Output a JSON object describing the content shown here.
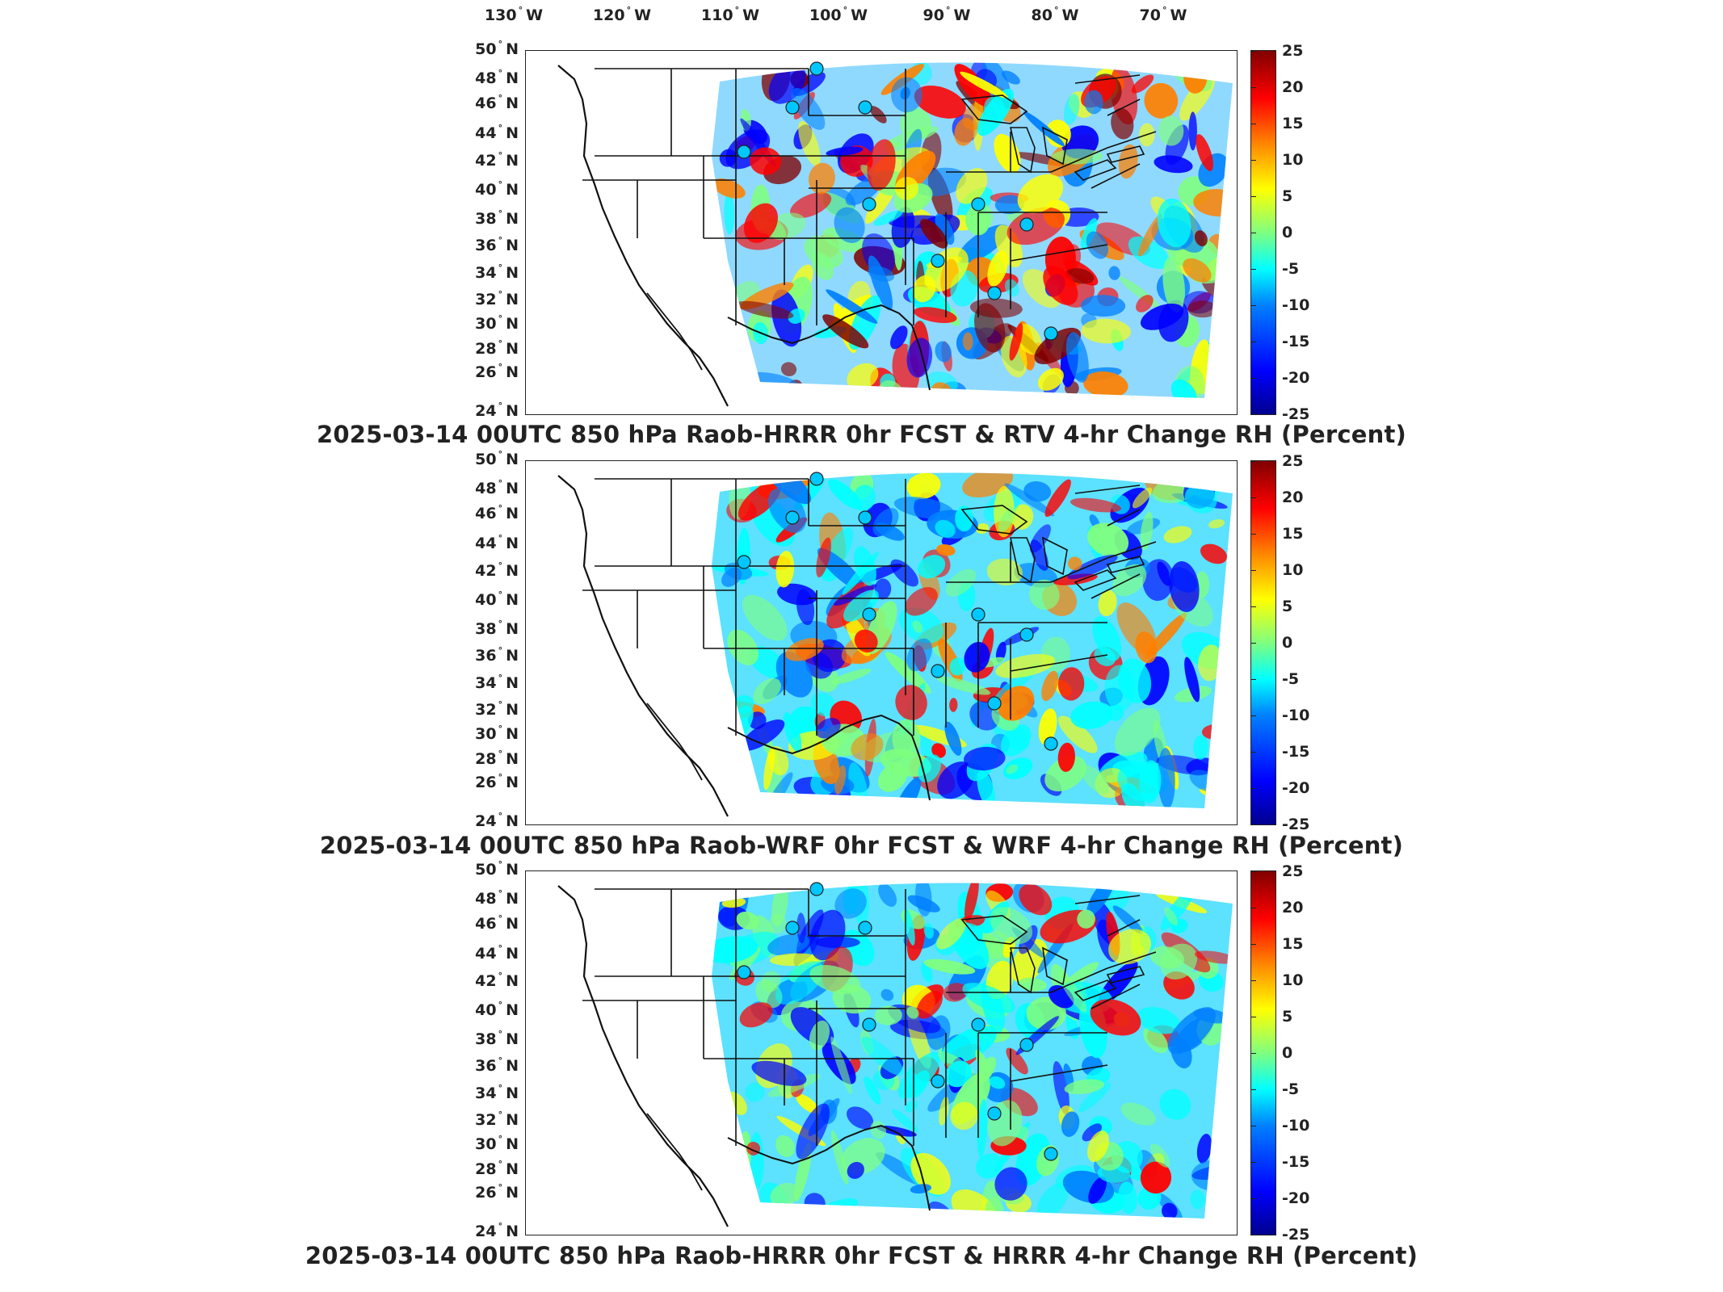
{
  "map": {
    "lon_labels": [
      "130",
      "120",
      "110",
      "100",
      "90",
      "80",
      "70"
    ],
    "lon_suffix": "W",
    "lat_labels": [
      "50",
      "48",
      "46",
      "44",
      "42",
      "40",
      "38",
      "36",
      "34",
      "32",
      "30",
      "28",
      "26",
      "24"
    ],
    "lat_suffix": "N",
    "colorbar_labels": [
      "25",
      "20",
      "15",
      "10",
      "5",
      "0",
      "-5",
      "-10",
      "-15",
      "-20",
      "-25"
    ],
    "colorbar_colors": [
      "#00008f",
      "#0000ff",
      "#0080ff",
      "#00ffff",
      "#7fff7f",
      "#ffff00",
      "#ff8000",
      "#ff0000",
      "#800000"
    ]
  },
  "panels": [
    {
      "id": "raob-hrrr-rtv",
      "title": "2025-03-14 00UTC 850 hPa Raob-HRRR 0hr FCST & RTV 4-hr Change RH (Percent)"
    },
    {
      "id": "raob-wrf-wrf",
      "title": "2025-03-14 00UTC 850 hPa Raob-WRF 0hr FCST & WRF 4-hr Change RH (Percent)"
    },
    {
      "id": "raob-hrrr-hrrr",
      "title": "2025-03-14 00UTC 850 hPa Raob-HRRR 0hr FCST & HRRR 4-hr Change RH (Percent)"
    }
  ]
}
